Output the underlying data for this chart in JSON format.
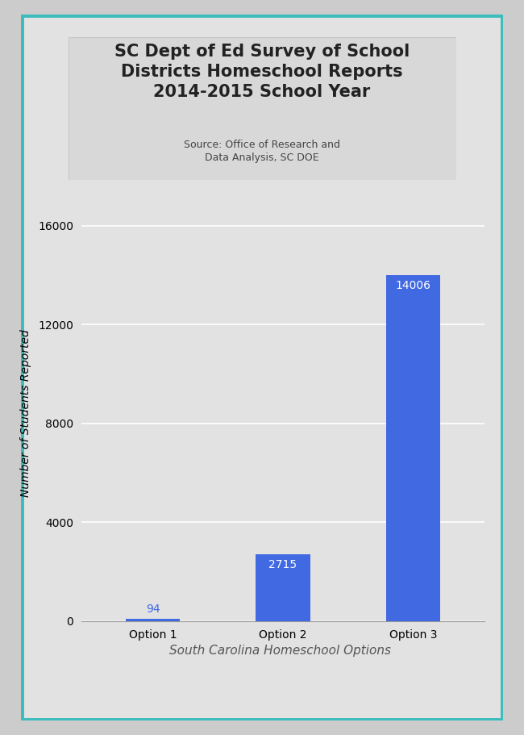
{
  "title": "SC Dept of Ed Survey of School\nDistricts Homeschool Reports\n2014-2015 School Year",
  "subtitle": "Source: Office of Research and\nData Analysis, SC DOE",
  "categories": [
    "Option 1",
    "Option 2",
    "Option 3"
  ],
  "values": [
    94,
    2715,
    14006
  ],
  "bar_color": "#4169e1",
  "bar_label_color_1": "#4169e1",
  "bar_label_color_23": "#ffffff",
  "ylabel": "Number of Students Reported",
  "xlabel": "South Carolina Homeschool Options",
  "ylim": [
    0,
    16800
  ],
  "yticks": [
    0,
    4000,
    8000,
    12000,
    16000
  ],
  "background_outer": "#cccccc",
  "background_inner": "#e2e2e2",
  "border_color": "#3cbcbc",
  "title_box_bg": "#d4d4d4",
  "title_fontsize": 15,
  "subtitle_fontsize": 9,
  "ylabel_fontsize": 10,
  "xlabel_fontsize": 11,
  "tick_fontsize": 10,
  "bar_label_fontsize": 10
}
